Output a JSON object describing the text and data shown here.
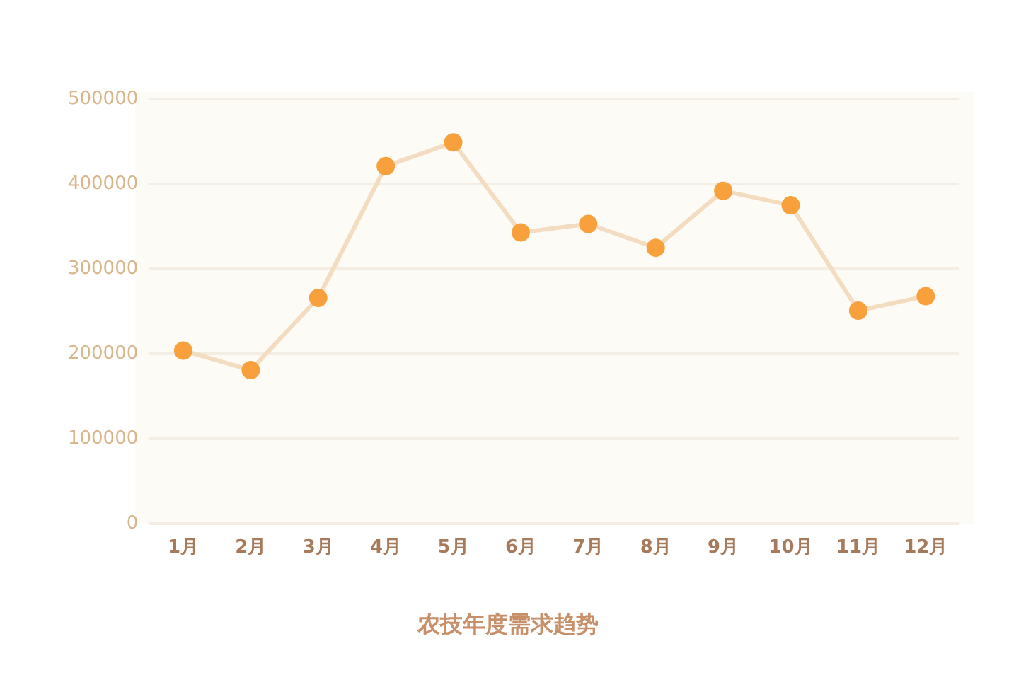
{
  "chart_data": {
    "type": "line",
    "title": "农技年度需求趋势",
    "categories": [
      "1月",
      "2月",
      "3月",
      "4月",
      "5月",
      "6月",
      "7月",
      "8月",
      "9月",
      "10月",
      "11月",
      "12月"
    ],
    "series": [
      {
        "color": "#f3dcc0",
        "values": [
          204000,
          181000,
          266000,
          421000,
          449000,
          343000,
          353000,
          325000,
          392000,
          375000,
          251000,
          268000
        ]
      }
    ],
    "ylim": [
      0,
      500000
    ],
    "yticks": [
      0,
      100000,
      200000,
      300000,
      400000,
      500000
    ],
    "grid": "y",
    "legend": false,
    "marker": "circle",
    "line_style": "solid"
  }
}
